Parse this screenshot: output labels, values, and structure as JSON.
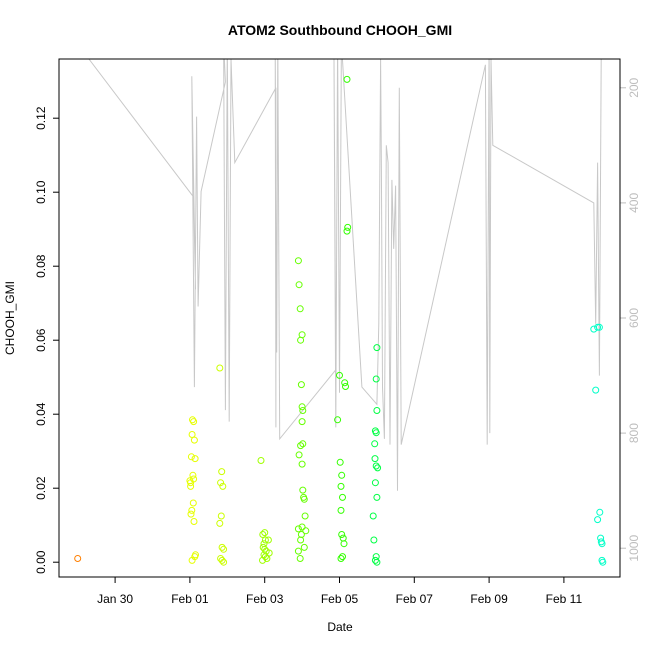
{
  "chart_data": {
    "type": "scatter",
    "title": "ATOM2 Southbound CHOOH_GMI",
    "xlabel": "Date",
    "ylabel": "CHOOH_GMI",
    "x_tick_labels": [
      "Jan 30",
      "Feb 01",
      "Feb 03",
      "Feb 05",
      "Feb 07",
      "Feb 09",
      "Feb 11"
    ],
    "x_ticks_day": [
      30,
      32,
      34,
      36,
      38,
      40,
      42
    ],
    "xlim_day": [
      28.5,
      43.5
    ],
    "ylim": [
      -0.004,
      0.136
    ],
    "y_ticks": [
      0.0,
      0.02,
      0.04,
      0.06,
      0.08,
      0.1,
      0.12
    ],
    "y_tick_labels": [
      "0.00",
      "0.02",
      "0.04",
      "0.06",
      "0.08",
      "0.10",
      "0.12"
    ],
    "right_axis": {
      "tick_labels": [
        "200",
        "400",
        "600",
        "800",
        "1000"
      ],
      "ticks": [
        200,
        400,
        600,
        800,
        1000
      ],
      "range_top": 150,
      "range_bottom": 1050,
      "color": "#bdbdbd"
    },
    "overlay_line_color": "#c8c8c8",
    "overlay_line": [
      [
        28.6,
        120
      ],
      [
        29.3,
        150
      ],
      [
        32.1,
        390
      ],
      [
        32.15,
        550
      ],
      [
        32.05,
        180
      ],
      [
        32.12,
        720
      ],
      [
        32.18,
        250
      ],
      [
        32.22,
        580
      ],
      [
        32.3,
        380
      ],
      [
        32.95,
        190
      ],
      [
        32.9,
        120
      ],
      [
        32.95,
        760
      ],
      [
        33.0,
        120
      ],
      [
        33.05,
        780
      ],
      [
        33.1,
        150
      ],
      [
        33.2,
        330
      ],
      [
        34.3,
        200
      ],
      [
        34.3,
        790
      ],
      [
        34.28,
        120
      ],
      [
        34.32,
        660
      ],
      [
        34.35,
        120
      ],
      [
        34.4,
        810
      ],
      [
        35.9,
        690
      ],
      [
        35.85,
        120
      ],
      [
        35.9,
        790
      ],
      [
        35.95,
        120
      ],
      [
        36.0,
        730
      ],
      [
        36.05,
        120
      ],
      [
        36.6,
        720
      ],
      [
        37.0,
        750
      ],
      [
        37.05,
        610
      ],
      [
        37.1,
        150
      ],
      [
        37.12,
        340
      ],
      [
        37.15,
        720
      ],
      [
        37.2,
        810
      ],
      [
        37.25,
        300
      ],
      [
        37.3,
        330
      ],
      [
        37.35,
        820
      ],
      [
        37.4,
        360
      ],
      [
        37.45,
        480
      ],
      [
        37.5,
        370
      ],
      [
        37.55,
        900
      ],
      [
        37.6,
        200
      ],
      [
        37.65,
        820
      ],
      [
        39.9,
        160
      ],
      [
        39.95,
        820
      ],
      [
        40.0,
        120
      ],
      [
        40.02,
        800
      ],
      [
        40.05,
        150
      ],
      [
        40.1,
        300
      ],
      [
        42.8,
        400
      ],
      [
        42.85,
        610
      ],
      [
        42.9,
        330
      ],
      [
        42.95,
        700
      ],
      [
        43.0,
        120
      ]
    ],
    "series": [
      {
        "color": "#ff7f00",
        "points": [
          [
            29.0,
            0.001
          ]
        ]
      },
      {
        "color": "#e6ff00",
        "points": [
          [
            32.0,
            0.022
          ],
          [
            32.02,
            0.0215
          ],
          [
            32.05,
            0.014
          ],
          [
            32.03,
            0.013
          ],
          [
            32.04,
            0.0285
          ],
          [
            32.06,
            0.0345
          ],
          [
            32.07,
            0.0385
          ],
          [
            32.1,
            0.038
          ],
          [
            32.12,
            0.033
          ],
          [
            32.08,
            0.0235
          ],
          [
            32.1,
            0.0225
          ],
          [
            32.14,
            0.028
          ],
          [
            32.09,
            0.016
          ],
          [
            32.11,
            0.011
          ],
          [
            32.06,
            0.0005
          ],
          [
            32.13,
            0.0015
          ],
          [
            32.15,
            0.002
          ],
          [
            32.02,
            0.0205
          ]
        ]
      },
      {
        "color": "#ccff00",
        "points": [
          [
            32.8,
            0.0525
          ],
          [
            32.85,
            0.0245
          ],
          [
            32.82,
            0.0215
          ],
          [
            32.88,
            0.0205
          ],
          [
            32.84,
            0.0125
          ],
          [
            32.8,
            0.0105
          ],
          [
            32.86,
            0.004
          ],
          [
            32.9,
            0.0035
          ],
          [
            32.82,
            0.001
          ],
          [
            32.86,
            0.0005
          ],
          [
            32.9,
            0.0
          ]
        ]
      },
      {
        "color": "#a0ff00",
        "points": [
          [
            33.9,
            0.0275
          ],
          [
            33.95,
            0.0075
          ],
          [
            34.0,
            0.008
          ],
          [
            34.02,
            0.006
          ],
          [
            33.98,
            0.005
          ],
          [
            33.96,
            0.004
          ],
          [
            34.0,
            0.0035
          ],
          [
            34.04,
            0.003
          ],
          [
            33.98,
            0.002
          ],
          [
            34.02,
            0.0015
          ],
          [
            34.06,
            0.001
          ],
          [
            33.94,
            0.0005
          ],
          [
            34.1,
            0.006
          ],
          [
            34.12,
            0.0025
          ]
        ]
      },
      {
        "color": "#66ff00",
        "points": [
          [
            34.9,
            0.0815
          ],
          [
            34.92,
            0.075
          ],
          [
            34.95,
            0.0685
          ],
          [
            35.0,
            0.0615
          ],
          [
            34.96,
            0.06
          ],
          [
            34.98,
            0.048
          ],
          [
            35.0,
            0.042
          ],
          [
            35.02,
            0.041
          ],
          [
            35.0,
            0.038
          ],
          [
            34.96,
            0.0315
          ],
          [
            35.02,
            0.032
          ],
          [
            34.92,
            0.029
          ],
          [
            35.0,
            0.0265
          ],
          [
            35.02,
            0.0195
          ],
          [
            35.04,
            0.0175
          ],
          [
            35.06,
            0.017
          ],
          [
            35.08,
            0.0125
          ],
          [
            34.9,
            0.009
          ],
          [
            35.0,
            0.0095
          ],
          [
            34.98,
            0.0075
          ],
          [
            34.96,
            0.006
          ],
          [
            35.06,
            0.004
          ],
          [
            34.9,
            0.003
          ],
          [
            34.95,
            0.001
          ],
          [
            35.1,
            0.0085
          ]
        ]
      },
      {
        "color": "#33ff00",
        "points": [
          [
            36.2,
            0.1305
          ],
          [
            36.2,
            0.0895
          ],
          [
            36.22,
            0.0905
          ],
          [
            36.0,
            0.0505
          ],
          [
            36.14,
            0.0485
          ],
          [
            36.16,
            0.0475
          ],
          [
            35.95,
            0.0385
          ],
          [
            36.02,
            0.027
          ],
          [
            36.06,
            0.0235
          ],
          [
            36.04,
            0.0205
          ],
          [
            36.08,
            0.0175
          ],
          [
            36.04,
            0.014
          ],
          [
            36.06,
            0.0075
          ],
          [
            36.1,
            0.0065
          ],
          [
            36.12,
            0.005
          ],
          [
            36.04,
            0.001
          ],
          [
            36.08,
            0.0015
          ]
        ]
      },
      {
        "color": "#00ff44",
        "points": [
          [
            37.0,
            0.058
          ],
          [
            36.98,
            0.0495
          ],
          [
            37.0,
            0.041
          ],
          [
            36.96,
            0.0355
          ],
          [
            36.98,
            0.035
          ],
          [
            36.94,
            0.032
          ],
          [
            36.95,
            0.028
          ],
          [
            36.98,
            0.026
          ],
          [
            37.02,
            0.0255
          ],
          [
            36.96,
            0.0215
          ],
          [
            37.0,
            0.0175
          ],
          [
            36.9,
            0.0125
          ],
          [
            36.92,
            0.006
          ],
          [
            36.98,
            0.0015
          ],
          [
            36.96,
            0.0005
          ],
          [
            37.0,
            0.0
          ]
        ]
      },
      {
        "color": "#00ffc8",
        "points": [
          [
            42.8,
            0.063
          ],
          [
            42.9,
            0.0635
          ],
          [
            42.95,
            0.0635
          ],
          [
            42.85,
            0.0465
          ],
          [
            42.96,
            0.0135
          ],
          [
            42.9,
            0.0115
          ],
          [
            42.98,
            0.0065
          ],
          [
            43.0,
            0.0055
          ],
          [
            43.02,
            0.005
          ],
          [
            43.02,
            0.0005
          ],
          [
            43.04,
            0.0
          ]
        ]
      }
    ]
  }
}
